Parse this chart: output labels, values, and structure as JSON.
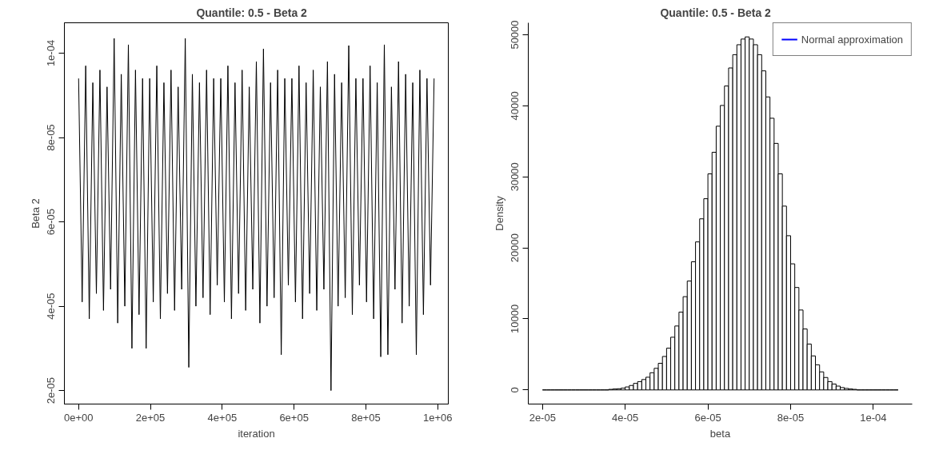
{
  "chart_data": [
    {
      "type": "line",
      "title": "Quantile:  0.5  - Beta  2",
      "xlabel": "iteration",
      "ylabel": "Beta 2",
      "xlim": [
        -39600,
        1029600
      ],
      "ylim": [
        1.68e-05,
        0.0001072
      ],
      "xticks": [
        {
          "value": 0,
          "label": "0e+00"
        },
        {
          "value": 200000,
          "label": "2e+05"
        },
        {
          "value": 400000,
          "label": "4e+05"
        },
        {
          "value": 600000,
          "label": "6e+05"
        },
        {
          "value": 800000,
          "label": "8e+05"
        },
        {
          "value": 1000000,
          "label": "1e+06"
        }
      ],
      "yticks": [
        {
          "value": 2e-05,
          "label": "2e-05"
        },
        {
          "value": 4e-05,
          "label": "4e-05"
        },
        {
          "value": 6e-05,
          "label": "6e-05"
        },
        {
          "value": 8e-05,
          "label": "8e-05"
        },
        {
          "value": 0.0001,
          "label": "1e-04"
        }
      ],
      "x": [
        0,
        9900,
        19800,
        29700,
        39600,
        49500,
        59400,
        69300,
        79200,
        89100,
        99000,
        108900,
        118800,
        128700,
        138600,
        148500,
        158400,
        168300,
        178200,
        188100,
        198000,
        207900,
        217800,
        227700,
        237600,
        247500,
        257400,
        267300,
        277200,
        287100,
        297000,
        306900,
        316800,
        326700,
        336600,
        346500,
        356400,
        366300,
        376200,
        386100,
        396000,
        405900,
        415800,
        425700,
        435600,
        445500,
        455400,
        465300,
        475200,
        485100,
        495000,
        504900,
        514800,
        524700,
        534600,
        544500,
        554400,
        564300,
        574200,
        584100,
        594000,
        603900,
        613800,
        623700,
        633600,
        643500,
        653400,
        663300,
        673200,
        683100,
        693000,
        702900,
        712800,
        722700,
        732600,
        742500,
        752400,
        762300,
        772200,
        782100,
        792000,
        801900,
        811800,
        821700,
        831600,
        841500,
        851400,
        861300,
        871200,
        881100,
        891000,
        900900,
        910800,
        920700,
        930600,
        940500,
        950400,
        960300,
        970200,
        980100,
        990000
      ],
      "series": [
        {
          "color": "#000000",
          "values": [
            9.4e-05,
            4.1e-05,
            9.7e-05,
            3.7e-05,
            9.3e-05,
            4.3e-05,
            9.6e-05,
            3.9e-05,
            9.2e-05,
            4.4e-05,
            0.0001035,
            3.6e-05,
            9.5e-05,
            4e-05,
            0.000102,
            3e-05,
            9.6e-05,
            3.8e-05,
            9.4e-05,
            3e-05,
            9.4e-05,
            4.1e-05,
            9.7e-05,
            3.7e-05,
            9.3e-05,
            4.3e-05,
            9.6e-05,
            3.9e-05,
            9.2e-05,
            4.4e-05,
            0.0001035,
            2.55e-05,
            9.5e-05,
            4e-05,
            9.3e-05,
            4.2e-05,
            9.6e-05,
            3.8e-05,
            9.4e-05,
            4.5e-05,
            9.4e-05,
            4.1e-05,
            9.7e-05,
            3.7e-05,
            9.3e-05,
            4.3e-05,
            9.6e-05,
            3.9e-05,
            9.2e-05,
            4.4e-05,
            9.8e-05,
            3.6e-05,
            0.000101,
            4e-05,
            9.3e-05,
            4.2e-05,
            9.6e-05,
            2.85e-05,
            9.4e-05,
            4.5e-05,
            9.4e-05,
            4.1e-05,
            9.7e-05,
            3.7e-05,
            9.3e-05,
            4.3e-05,
            9.6e-05,
            3.9e-05,
            9.2e-05,
            4.4e-05,
            9.8e-05,
            2e-05,
            9.5e-05,
            4e-05,
            9.3e-05,
            4.2e-05,
            0.0001018,
            3.8e-05,
            9.4e-05,
            4.5e-05,
            9.4e-05,
            4.1e-05,
            9.7e-05,
            3.7e-05,
            9.3e-05,
            2.8e-05,
            0.000102,
            2.85e-05,
            9.2e-05,
            4.4e-05,
            9.8e-05,
            3.6e-05,
            9.5e-05,
            4e-05,
            9.3e-05,
            2.85e-05,
            9.6e-05,
            3.8e-05,
            9.4e-05,
            4.5e-05,
            9.4e-05
          ]
        }
      ]
    },
    {
      "type": "histogram",
      "title": "Quantile:  0.5  - Beta  2",
      "xlabel": "beta",
      "ylabel": "Density",
      "xlim": [
        1.656e-05,
        0.0001094
      ],
      "ylim": [
        -1990,
        51690
      ],
      "xticks": [
        {
          "value": 2e-05,
          "label": "2e-05"
        },
        {
          "value": 4e-05,
          "label": "4e-05"
        },
        {
          "value": 6e-05,
          "label": "6e-05"
        },
        {
          "value": 8e-05,
          "label": "8e-05"
        },
        {
          "value": 0.0001,
          "label": "1e-04"
        }
      ],
      "yticks": [
        0,
        10000,
        20000,
        30000,
        40000,
        50000
      ],
      "legend": "top right",
      "colors": [
        "#000000",
        "#000000",
        "#000000",
        "#000000",
        "#000000",
        "#000000",
        "#000000",
        "#000000",
        "#000000",
        "#000000",
        "#000000",
        "#000000",
        "#000000",
        "#000000",
        "#000000",
        "#000000",
        "#ffffff",
        "#ffffff",
        "#ffffff",
        "#ffffff",
        "#ffffff",
        "#ffffff",
        "#ffffff",
        "#ffffff",
        "#ffffff",
        "#ffffff",
        "#ffffff",
        "#ffffff",
        "#ffffff",
        "#ffffff",
        "#ffffff",
        "#ffffff",
        "#ffffff",
        "#ffffff",
        "#ffffff",
        "#ffffff",
        "#ffffff",
        "#ffffff",
        "#ffffff",
        "#ffffff",
        "#ffffff",
        "#ffffff",
        "#ffffff",
        "#ffffff",
        "#ffffff",
        "#ffffff",
        "#ffffff",
        "#ffffff",
        "#ffffff",
        "#ffffff",
        "#ffffff",
        "#ffffff",
        "#ffffff",
        "#ffffff",
        "#ffffff",
        "#ffffff",
        "#ffffff",
        "#ffffff",
        "#ffffff",
        "#ffffff",
        "#ffffff",
        "#ffffff",
        "#ffffff",
        "#ffffff",
        "#ffffff",
        "#ffffff",
        "#ffffff",
        "#ffffff",
        "#ffffff",
        "#ffffff",
        "#ffffff",
        "#ffffff",
        "#ffffff",
        "#ffffff",
        "#ffffff",
        "#ffffff",
        "#000000",
        "#000000",
        "#000000",
        "#000000",
        "#000000",
        "#000000",
        "#000000",
        "#000000",
        "#000000",
        "#000000"
      ],
      "bins": [
        2e-05,
        2.1e-05,
        2.2e-05,
        2.3e-05,
        2.4e-05,
        2.5e-05,
        2.6e-05,
        2.7e-05,
        2.8e-05,
        2.9e-05,
        3e-05,
        3.1e-05,
        3.2e-05,
        3.3e-05,
        3.4e-05,
        3.5e-05,
        3.6e-05,
        3.7e-05,
        3.8e-05,
        3.9e-05,
        4e-05,
        4.1e-05,
        4.2e-05,
        4.3e-05,
        4.4e-05,
        4.5e-05,
        4.6e-05,
        4.7e-05,
        4.8e-05,
        4.9e-05,
        5e-05,
        5.1e-05,
        5.2e-05,
        5.3e-05,
        5.4e-05,
        5.5e-05,
        5.6e-05,
        5.7e-05,
        5.8e-05,
        5.9e-05,
        6e-05,
        6.1e-05,
        6.2e-05,
        6.3e-05,
        6.4e-05,
        6.5e-05,
        6.6e-05,
        6.7e-05,
        6.8e-05,
        6.9e-05,
        7e-05,
        7.1e-05,
        7.2e-05,
        7.3e-05,
        7.4e-05,
        7.5e-05,
        7.6e-05,
        7.7e-05,
        7.8e-05,
        7.9e-05,
        8e-05,
        8.1e-05,
        8.2e-05,
        8.3e-05,
        8.4e-05,
        8.5e-05,
        8.6e-05,
        8.7e-05,
        8.8e-05,
        8.9e-05,
        9e-05,
        9.1e-05,
        9.2e-05,
        9.3e-05,
        9.4e-05,
        9.5e-05,
        9.6e-05,
        9.7e-05,
        9.8e-05,
        9.9e-05,
        0.0001,
        0.000101,
        0.000102,
        0.000103,
        0.000104,
        0.000105,
        0.000106
      ],
      "values": [
        0,
        0,
        0,
        0,
        0,
        0,
        0,
        0,
        0,
        0,
        0,
        0,
        0,
        0,
        0,
        0,
        80,
        130,
        170,
        250,
        420,
        625,
        920,
        1170,
        1460,
        1790,
        2420,
        3040,
        3750,
        4710,
        5880,
        7420,
        9000,
        10960,
        13130,
        15330,
        18040,
        20840,
        24090,
        26920,
        30420,
        33460,
        37130,
        40050,
        42790,
        45330,
        47200,
        48600,
        49400,
        49700,
        49400,
        48600,
        47200,
        44920,
        41250,
        38250,
        34710,
        30420,
        25880,
        21710,
        17750,
        14420,
        11250,
        8580,
        6460,
        4790,
        3540,
        2540,
        1750,
        1170,
        830,
        540,
        330,
        210,
        130,
        80,
        0,
        0,
        0,
        0,
        0,
        0,
        0,
        0,
        0,
        0
      ],
      "series": [
        {
          "type": "line",
          "name": "Normal approximation",
          "color": "#0000ff",
          "values": [
            null
          ]
        }
      ]
    }
  ]
}
